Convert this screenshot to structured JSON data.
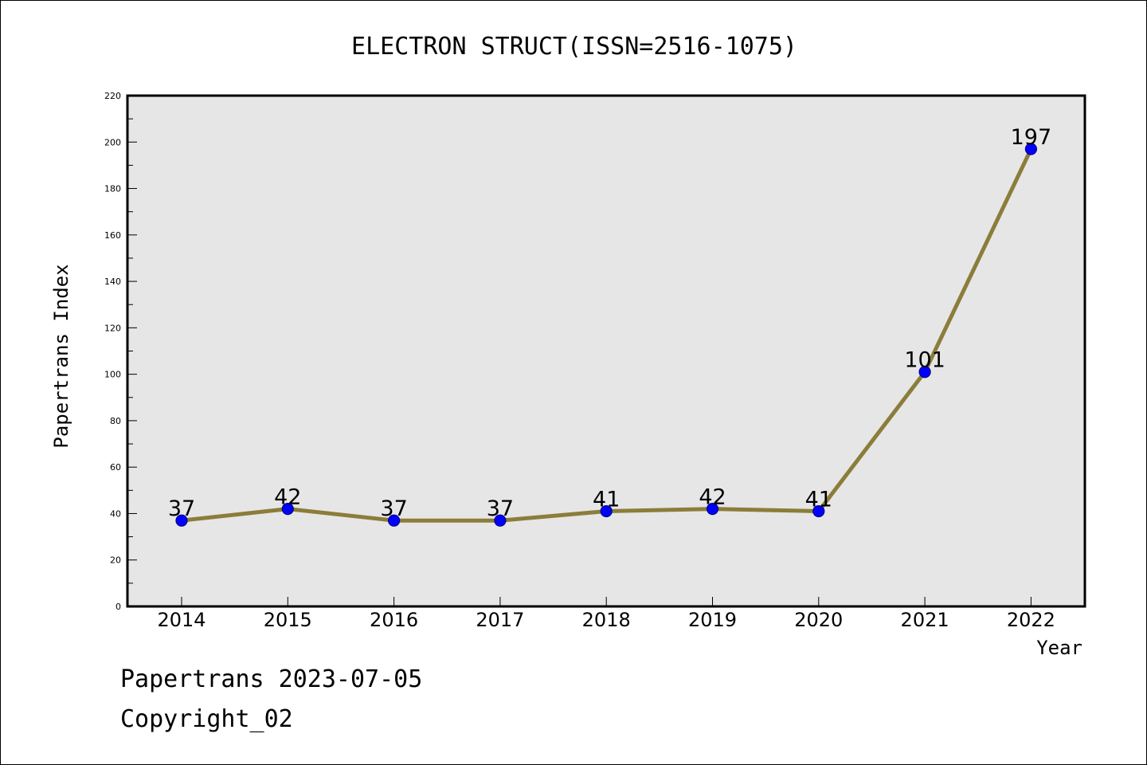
{
  "chart_data": {
    "type": "line",
    "title": "ELECTRON STRUCT(ISSN=2516-1075)",
    "xlabel": "Year",
    "ylabel": "Papertrans Index",
    "categories": [
      "2014",
      "2015",
      "2016",
      "2017",
      "2018",
      "2019",
      "2020",
      "2021",
      "2022"
    ],
    "series": [
      {
        "values": [
          37,
          42,
          37,
          37,
          41,
          42,
          41,
          101,
          197
        ]
      }
    ],
    "data_labels": [
      "37",
      "42",
      "37",
      "37",
      "41",
      "42",
      "41",
      "101",
      "197"
    ],
    "ylim": [
      0,
      220
    ],
    "yticks": [
      0,
      20,
      40,
      60,
      80,
      100,
      120,
      140,
      160,
      180,
      200,
      220
    ],
    "ytick_labels": [
      "0",
      "20",
      "40",
      "60",
      "80",
      "100",
      "120",
      "140",
      "160",
      "180",
      "200",
      "220"
    ],
    "grid": false,
    "legend": "none",
    "colors": {
      "line": "#8b7d3a",
      "marker_fill": "#0000ff",
      "marker_edge": "#00008b",
      "plot_background": "#e6e6e6"
    }
  },
  "footer": {
    "line1": "Papertrans 2023-07-05",
    "line2": "Copyright_02"
  }
}
